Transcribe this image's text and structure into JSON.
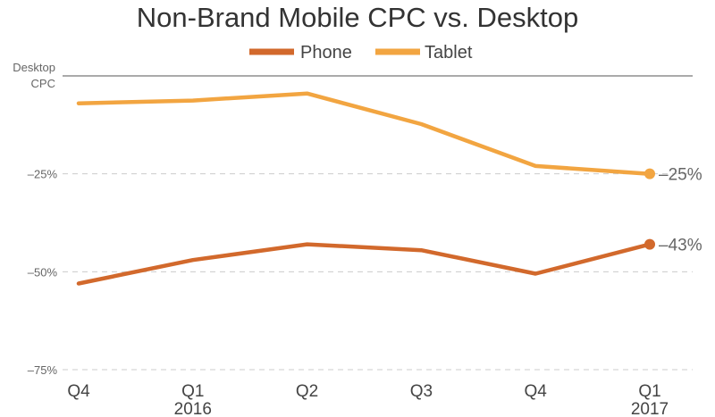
{
  "chart_data": {
    "type": "line",
    "title": "Non-Brand Mobile CPC vs. Desktop",
    "y_axis_top_label": [
      "Desktop",
      "CPC"
    ],
    "xlabel": "",
    "ylabel": "",
    "categories": [
      {
        "quarter": "Q4",
        "year": ""
      },
      {
        "quarter": "Q1",
        "year": "2016"
      },
      {
        "quarter": "Q2",
        "year": ""
      },
      {
        "quarter": "Q3",
        "year": ""
      },
      {
        "quarter": "Q4",
        "year": ""
      },
      {
        "quarter": "Q1",
        "year": "2017"
      }
    ],
    "y_ticks": [
      {
        "value": 0,
        "label": ""
      },
      {
        "value": -25,
        "label": "–25%"
      },
      {
        "value": -50,
        "label": "–50%"
      },
      {
        "value": -75,
        "label": "–75%"
      }
    ],
    "ylim": [
      -75,
      0
    ],
    "legend_position": "top-center",
    "series": [
      {
        "name": "Tablet",
        "color": "#F2A541",
        "values": [
          -7,
          -6.3,
          -4.5,
          -12.3,
          -23,
          -25
        ],
        "end_label": "–25%"
      },
      {
        "name": "Phone",
        "color": "#D2692C",
        "values": [
          -53,
          -47,
          -43,
          -44.5,
          -50.5,
          -43
        ],
        "end_label": "–43%"
      }
    ],
    "legend_order": [
      "Phone",
      "Tablet"
    ],
    "colors": {
      "zero_line": "#555555",
      "grid_line": "#cccccc",
      "tick_text": "#666666",
      "title_text": "#333333",
      "end_label_text": "#666666"
    }
  }
}
